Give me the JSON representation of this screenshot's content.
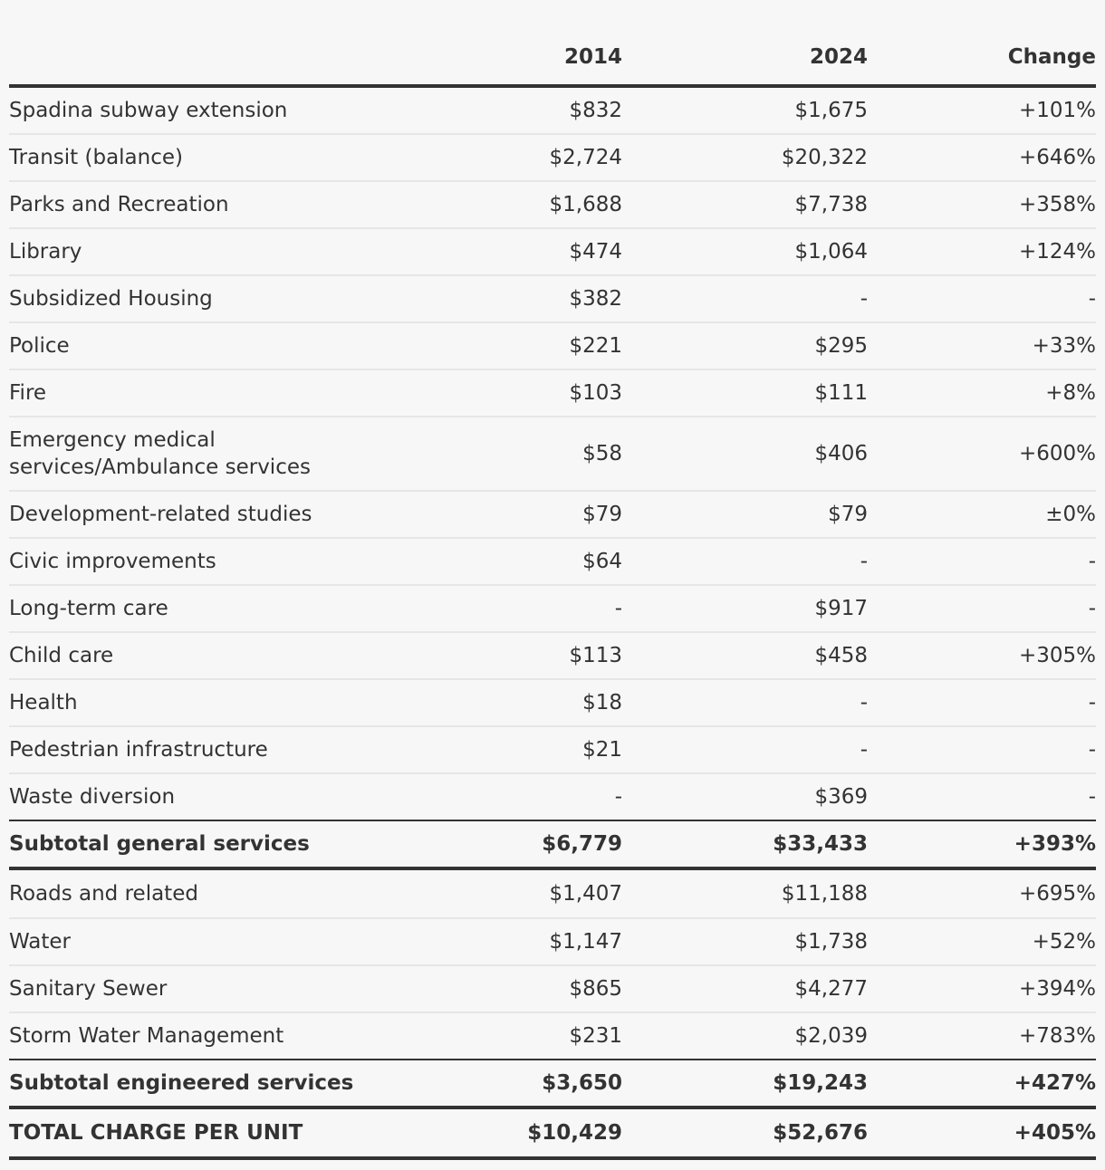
{
  "table": {
    "headers": [
      "",
      "2014",
      "2024",
      "Change"
    ],
    "rows": [
      {
        "label": "Spadina subway extension",
        "y2014": "$832",
        "y2024": "$1,675",
        "change": "+101%"
      },
      {
        "label": "Transit (balance)",
        "y2014": "$2,724",
        "y2024": "$20,322",
        "change": "+646%"
      },
      {
        "label": "Parks and Recreation",
        "y2014": "$1,688",
        "y2024": "$7,738",
        "change": "+358%"
      },
      {
        "label": "Library",
        "y2014": "$474",
        "y2024": "$1,064",
        "change": "+124%"
      },
      {
        "label": "Subsidized Housing",
        "y2014": "$382",
        "y2024": "-",
        "change": "-"
      },
      {
        "label": "Police",
        "y2014": "$221",
        "y2024": "$295",
        "change": "+33%"
      },
      {
        "label": "Fire",
        "y2014": "$103",
        "y2024": "$111",
        "change": "+8%"
      },
      {
        "label": "Emergency medical services/Ambulance services",
        "y2014": "$58",
        "y2024": "$406",
        "change": "+600%"
      },
      {
        "label": "Development-related studies",
        "y2014": "$79",
        "y2024": "$79",
        "change": "±0%"
      },
      {
        "label": "Civic improvements",
        "y2014": "$64",
        "y2024": "-",
        "change": "-"
      },
      {
        "label": "Long-term care",
        "y2014": "-",
        "y2024": "$917",
        "change": "-"
      },
      {
        "label": "Child care",
        "y2014": "$113",
        "y2024": "$458",
        "change": "+305%"
      },
      {
        "label": "Health",
        "y2014": "$18",
        "y2024": "-",
        "change": "-"
      },
      {
        "label": "Pedestrian infrastructure",
        "y2014": "$21",
        "y2024": "-",
        "change": "-"
      },
      {
        "label": "Waste diversion",
        "y2014": "-",
        "y2024": "$369",
        "change": "-"
      },
      {
        "label": "Subtotal general services",
        "y2014": "$6,779",
        "y2024": "$33,433",
        "change": "+393%"
      },
      {
        "label": "Roads and related",
        "y2014": "$1,407",
        "y2024": "$11,188",
        "change": "+695%"
      },
      {
        "label": "Water",
        "y2014": "$1,147",
        "y2024": "$1,738",
        "change": "+52%"
      },
      {
        "label": "Sanitary Sewer",
        "y2014": "$865",
        "y2024": "$4,277",
        "change": "+394%"
      },
      {
        "label": "Storm Water Management",
        "y2014": "$231",
        "y2024": "$2,039",
        "change": "+783%"
      },
      {
        "label": "Subtotal engineered services",
        "y2014": "$3,650",
        "y2024": "$19,243",
        "change": "+427%"
      },
      {
        "label": "TOTAL CHARGE PER UNIT",
        "y2014": "$10,429",
        "y2024": "$52,676",
        "change": "+405%"
      }
    ]
  }
}
